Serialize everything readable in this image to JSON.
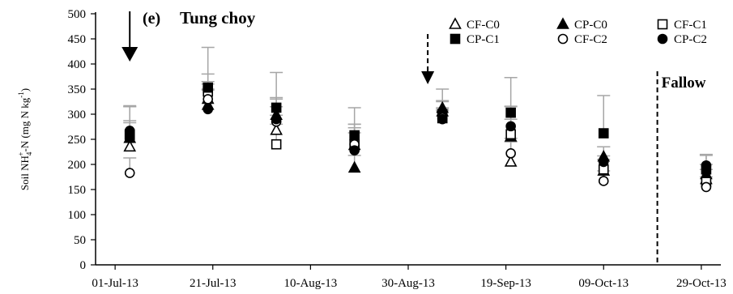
{
  "chart_data": {
    "type": "scatter",
    "panel_label": "(e)",
    "title": "Tung choy",
    "ylabel_parts": [
      "Soil NH",
      "4",
      "+",
      "-N (mg N kg",
      "-1",
      ")"
    ],
    "ylim": [
      0,
      500
    ],
    "yticks": [
      0,
      50,
      100,
      150,
      200,
      250,
      300,
      350,
      400,
      450,
      500
    ],
    "xlim": [
      "2013-06-27",
      "2013-11-02"
    ],
    "xtick_dates": [
      "2013-07-01",
      "2013-07-21",
      "2013-08-10",
      "2013-08-30",
      "2013-09-19",
      "2013-10-09",
      "2013-10-29"
    ],
    "xtick_labels": [
      "01-Jul-13",
      "21-Jul-13",
      "10-Aug-13",
      "30-Aug-13",
      "19-Sep-13",
      "09-Oct-13",
      "29-Oct-13"
    ],
    "grid": false,
    "legend_position": "top-right",
    "dates": [
      "2013-07-04",
      "2013-07-20",
      "2013-08-03",
      "2013-08-19",
      "2013-09-06",
      "2013-09-20",
      "2013-10-09",
      "2013-10-30"
    ],
    "series": [
      {
        "name": "CF-C0",
        "marker": "triangle-open",
        "values": [
          235,
          330,
          268,
          238,
          305,
          205,
          187,
          170
        ],
        "error": [
          80,
          35,
          30,
          35,
          20,
          40,
          30,
          20
        ]
      },
      {
        "name": "CP-C0",
        "marker": "triangle-filled",
        "values": [
          252,
          318,
          298,
          193,
          312,
          255,
          215,
          180
        ],
        "error": [
          35,
          30,
          35,
          25,
          15,
          60,
          20,
          20
        ]
      },
      {
        "name": "CF-C1",
        "marker": "square-open",
        "values": [
          258,
          345,
          240,
          240,
          292,
          260,
          190,
          165
        ],
        "error": [
          25,
          35,
          40,
          40,
          15,
          30,
          20,
          25
        ]
      },
      {
        "name": "CP-C1",
        "marker": "square-filled",
        "values": [
          260,
          353,
          313,
          258,
          300,
          303,
          262,
          190
        ],
        "error": [
          55,
          80,
          70,
          55,
          50,
          70,
          75,
          30
        ]
      },
      {
        "name": "CF-C2",
        "marker": "circle-open",
        "values": [
          183,
          330,
          285,
          240,
          293,
          222,
          167,
          155
        ],
        "error": [
          30,
          30,
          30,
          40,
          20,
          30,
          20,
          20
        ]
      },
      {
        "name": "CP-C2",
        "marker": "circle-filled",
        "values": [
          267,
          310,
          290,
          228,
          290,
          276,
          205,
          198
        ],
        "error": [
          50,
          40,
          40,
          35,
          20,
          40,
          30,
          20
        ]
      }
    ],
    "annotations": {
      "fallow_label": "Fallow",
      "fallow_date": "2013-10-20",
      "arrows": [
        {
          "date": "2013-07-04",
          "style": "solid"
        },
        {
          "date": "2013-09-03",
          "style": "dashed"
        }
      ]
    },
    "colors": {
      "marker": "#000000",
      "error_bar": "#a6a6a6",
      "axis": "#000000"
    }
  }
}
